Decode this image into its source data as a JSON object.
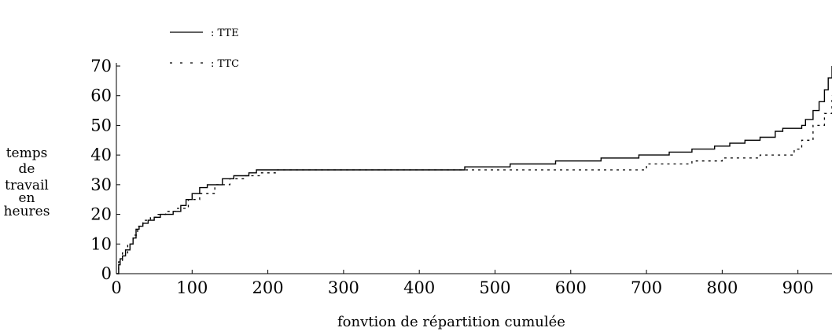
{
  "chart_data": {
    "type": "line",
    "title": "",
    "xlabel": "fonvtion de répartition cumulée",
    "ylabel_lines": [
      "temps",
      "de",
      "travail",
      "en",
      "heures"
    ],
    "xlim": [
      0,
      945
    ],
    "ylim": [
      0,
      70
    ],
    "xticks": [
      0,
      100,
      200,
      300,
      400,
      500,
      600,
      700,
      800,
      900
    ],
    "yticks": [
      0,
      10,
      20,
      30,
      40,
      50,
      60,
      70
    ],
    "grid": false,
    "legend_position": "top-left",
    "series": [
      {
        "name": ": TTE",
        "style": "solid",
        "color": "#000000",
        "x": [
          0,
          3,
          5,
          8,
          12,
          18,
          22,
          26,
          30,
          35,
          42,
          50,
          58,
          75,
          85,
          92,
          100,
          110,
          120,
          140,
          155,
          175,
          185,
          450,
          460,
          520,
          580,
          640,
          690,
          730,
          760,
          790,
          810,
          830,
          850,
          870,
          880,
          905,
          910,
          920,
          928,
          935,
          940,
          945
        ],
        "values": [
          0,
          3,
          5,
          6,
          8,
          10,
          12,
          15,
          16,
          17,
          18,
          19,
          20,
          21,
          23,
          25,
          27,
          29,
          30,
          32,
          33,
          34,
          35,
          35,
          36,
          37,
          38,
          39,
          40,
          41,
          42,
          43,
          44,
          45,
          46,
          48,
          49,
          50,
          52,
          55,
          58,
          62,
          66,
          70
        ]
      },
      {
        "name": ": TTC",
        "style": "dotted",
        "color": "#000000",
        "x": [
          0,
          3,
          8,
          15,
          22,
          28,
          35,
          45,
          55,
          65,
          80,
          95,
          110,
          130,
          150,
          170,
          190,
          210,
          450,
          500,
          560,
          620,
          700,
          760,
          800,
          850,
          880,
          895,
          905,
          920,
          935,
          945
        ],
        "values": [
          0,
          4,
          7,
          10,
          13,
          16,
          18,
          19,
          20,
          21,
          22,
          25,
          27,
          30,
          32,
          33,
          34,
          35,
          35,
          35,
          35,
          35,
          37,
          38,
          39,
          40,
          40,
          42,
          45,
          50,
          54,
          60
        ]
      }
    ]
  }
}
